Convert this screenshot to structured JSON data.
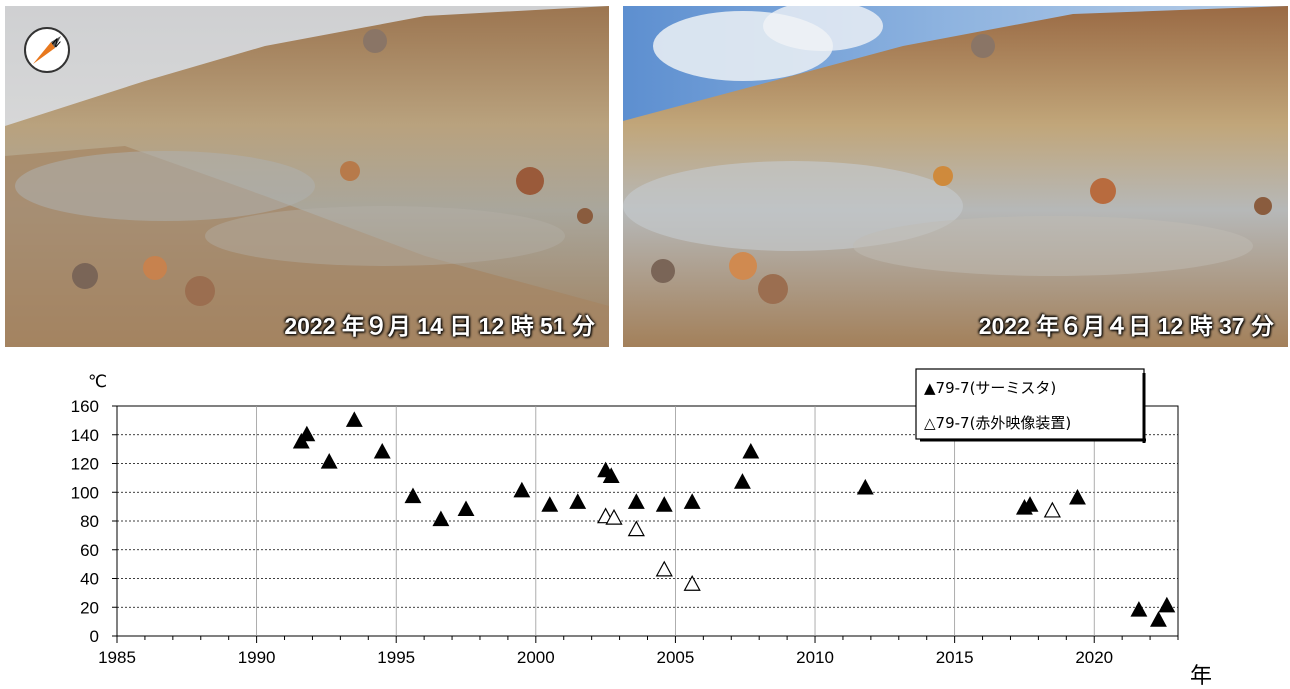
{
  "photos": {
    "left_caption": "2022 年９月 14 日 12 時 51 分",
    "right_caption": "2022 年６月４日 12 時 37 分",
    "compass_label": "N"
  },
  "chart_data": {
    "type": "scatter",
    "title": "",
    "xlabel": "年",
    "ylabel": "℃",
    "xlim": [
      1985,
      2023
    ],
    "ylim": [
      0,
      160
    ],
    "x_ticks": [
      1985,
      1990,
      1995,
      2000,
      2005,
      2010,
      2015,
      2020
    ],
    "y_ticks": [
      0,
      20,
      40,
      60,
      80,
      100,
      120,
      140,
      160
    ],
    "grid": "horizontal dashed + vertical solid every 5 years",
    "legend_position": "top-right",
    "series": [
      {
        "name": "▲79-7(サーミスタ)",
        "marker": "filled-triangle",
        "color": "#000000",
        "points": [
          [
            1991.6,
            135
          ],
          [
            1991.8,
            140
          ],
          [
            1992.6,
            121
          ],
          [
            1993.5,
            150
          ],
          [
            1994.5,
            128
          ],
          [
            1995.6,
            97
          ],
          [
            1996.6,
            81
          ],
          [
            1997.5,
            88
          ],
          [
            1999.5,
            101
          ],
          [
            2000.5,
            91
          ],
          [
            2001.5,
            93
          ],
          [
            2002.5,
            115
          ],
          [
            2002.7,
            111
          ],
          [
            2003.6,
            93
          ],
          [
            2004.6,
            91
          ],
          [
            2005.6,
            93
          ],
          [
            2007.4,
            107
          ],
          [
            2007.7,
            128
          ],
          [
            2011.8,
            103
          ],
          [
            2017.5,
            89
          ],
          [
            2017.7,
            91
          ],
          [
            2019.4,
            96
          ],
          [
            2021.6,
            18
          ],
          [
            2022.3,
            11
          ],
          [
            2022.6,
            21
          ]
        ]
      },
      {
        "name": "△79-7(赤外映像装置)",
        "marker": "open-triangle",
        "color": "#000000",
        "points": [
          [
            2002.5,
            83
          ],
          [
            2002.8,
            82
          ],
          [
            2003.6,
            74
          ],
          [
            2004.6,
            46
          ],
          [
            2005.6,
            36
          ],
          [
            2018.5,
            87
          ]
        ]
      }
    ]
  }
}
